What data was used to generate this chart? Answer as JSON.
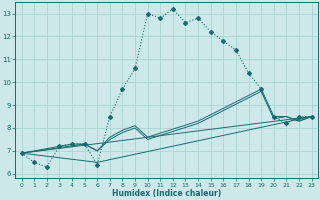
{
  "xlabel": "Humidex (Indice chaleur)",
  "xlim": [
    -0.5,
    23.5
  ],
  "ylim": [
    5.8,
    13.5
  ],
  "yticks": [
    6,
    7,
    8,
    9,
    10,
    11,
    12,
    13
  ],
  "xticks": [
    0,
    1,
    2,
    3,
    4,
    5,
    6,
    7,
    8,
    9,
    10,
    11,
    12,
    13,
    14,
    15,
    16,
    17,
    18,
    19,
    20,
    21,
    22,
    23
  ],
  "bg_color": "#cce8ea",
  "grid_color": "#aed4d6",
  "line_color": "#1a6b6b",
  "line1_x": [
    0,
    1,
    2,
    3,
    4,
    5,
    6,
    7,
    8,
    9,
    10,
    11,
    12,
    13,
    14,
    15,
    16,
    17,
    18,
    19,
    20,
    21,
    22,
    23
  ],
  "line1_y": [
    6.9,
    6.5,
    6.3,
    7.2,
    7.3,
    7.3,
    6.4,
    8.5,
    9.7,
    10.6,
    13.0,
    12.8,
    13.2,
    12.6,
    12.8,
    12.2,
    11.8,
    11.4,
    10.4,
    9.7,
    8.5,
    8.2,
    8.5,
    8.5
  ],
  "line2_x": [
    0,
    23
  ],
  "line2_y": [
    6.9,
    8.5
  ],
  "line3_x": [
    0,
    6,
    23
  ],
  "line3_y": [
    6.9,
    6.5,
    8.5
  ],
  "line4_x": [
    0,
    5,
    6,
    7,
    8,
    9,
    10,
    14,
    19,
    20,
    21,
    22,
    23
  ],
  "line4_y": [
    6.9,
    7.3,
    7.0,
    7.5,
    7.8,
    8.0,
    7.5,
    8.2,
    9.6,
    8.4,
    8.5,
    8.3,
    8.5
  ],
  "line5_x": [
    0,
    3,
    4,
    5,
    6,
    7,
    8,
    9,
    10,
    14,
    19,
    20,
    21,
    22,
    23
  ],
  "line5_y": [
    6.9,
    7.2,
    7.3,
    7.3,
    7.0,
    7.6,
    7.9,
    8.1,
    7.6,
    8.3,
    9.7,
    8.5,
    8.5,
    8.3,
    8.5
  ]
}
